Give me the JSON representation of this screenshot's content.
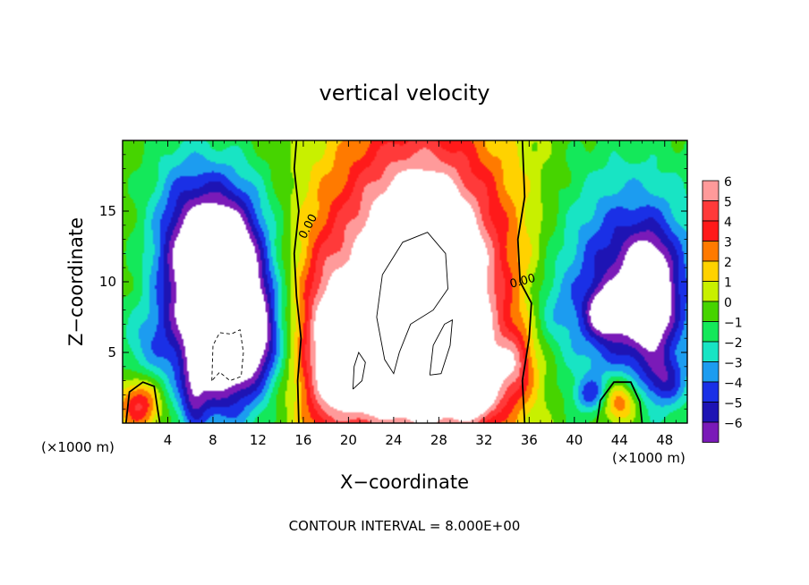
{
  "chart_data": {
    "type": "heatmap",
    "title": "vertical velocity",
    "xlabel": "X−coordinate",
    "ylabel": "Z−coordinate",
    "x_unit_left": "(×1000 m)",
    "x_unit_right": "(×1000 m)",
    "footer": "CONTOUR INTERVAL = 8.000E+00",
    "xlim": [
      0,
      50
    ],
    "ylim": [
      0,
      20
    ],
    "x_ticks": [
      4,
      8,
      12,
      16,
      20,
      24,
      28,
      32,
      36,
      40,
      44,
      48
    ],
    "y_ticks": [
      5,
      10,
      15
    ],
    "x_tick_labels": [
      "4",
      "8",
      "12",
      "16",
      "20",
      "24",
      "28",
      "32",
      "36",
      "40",
      "44",
      "48"
    ],
    "y_tick_labels": [
      "5",
      "10",
      "15"
    ],
    "contour_labels": [
      {
        "text": "0.00",
        "x": 16.7,
        "y": 13.8
      },
      {
        "text": "0.00",
        "x": 35.5,
        "y": 9.8
      }
    ],
    "colorbar": {
      "levels": [
        6,
        5,
        4,
        3,
        2,
        1,
        0,
        -1,
        -2,
        -3,
        -4,
        -5,
        -6
      ],
      "labels": [
        "6",
        "5",
        "4",
        "3",
        "2",
        "1",
        "0",
        "−1",
        "−2",
        "−3",
        "−4",
        "−5",
        "−6"
      ],
      "colors": [
        "#ff9a9a",
        "#ff3a3a",
        "#ff1a1a",
        "#ff7a00",
        "#ffd200",
        "#c8f000",
        "#46d400",
        "#14e85a",
        "#18e4c4",
        "#1c9cf0",
        "#1a30e6",
        "#1e14b4",
        "#7a1ab8"
      ]
    },
    "field_blobs": [
      {
        "x": 26.2,
        "z": 9.5,
        "sx": 5.6,
        "sz": 8.0,
        "amp": 11
      },
      {
        "x": 27.3,
        "z": 7.5,
        "sx": 2.6,
        "sz": 4.2,
        "amp": 6
      },
      {
        "x": 18.0,
        "z": 5.0,
        "sx": 1.6,
        "sz": 4.5,
        "amp": 5
      },
      {
        "x": 21.5,
        "z": 2.5,
        "sx": 1.8,
        "sz": 1.6,
        "amp": 4
      },
      {
        "x": 33.2,
        "z": 3.2,
        "sx": 2.0,
        "sz": 2.0,
        "amp": 3
      },
      {
        "x": 35.0,
        "z": 4.5,
        "sx": 1.0,
        "sz": 1.5,
        "amp": 2
      },
      {
        "x": 31.0,
        "z": 1.5,
        "sx": 1.2,
        "sz": 1.0,
        "amp": 3
      },
      {
        "x": 9.0,
        "z": 7.5,
        "sx": 2.4,
        "sz": 4.6,
        "amp": -11
      },
      {
        "x": 8.5,
        "z": 12.5,
        "sx": 3.2,
        "sz": 4.0,
        "amp": -5
      },
      {
        "x": 5.0,
        "z": 11.0,
        "sx": 2.0,
        "sz": 6.0,
        "amp": -3
      },
      {
        "x": 12.0,
        "z": 6.0,
        "sx": 1.6,
        "sz": 2.5,
        "amp": -4
      },
      {
        "x": 44.8,
        "z": 9.5,
        "sx": 4.5,
        "sz": 5.5,
        "amp": -6
      },
      {
        "x": 46.7,
        "z": 9.0,
        "sx": 1.4,
        "sz": 2.6,
        "amp": -6
      },
      {
        "x": 42.8,
        "z": 7.8,
        "sx": 1.1,
        "sz": 1.1,
        "amp": -5
      },
      {
        "x": 41.5,
        "z": 2.0,
        "sx": 1.0,
        "sz": 0.8,
        "amp": -3
      },
      {
        "x": 48.0,
        "z": 3.0,
        "sx": 1.2,
        "sz": 1.2,
        "amp": -3
      },
      {
        "x": 1.5,
        "z": 1.3,
        "sx": 1.3,
        "sz": 1.3,
        "amp": 5
      },
      {
        "x": 44.0,
        "z": 1.5,
        "sx": 1.2,
        "sz": 1.2,
        "amp": 5
      },
      {
        "x": 6.3,
        "z": 2.0,
        "sx": 0.8,
        "sz": 1.8,
        "amp": -3
      },
      {
        "x": 2.0,
        "z": 5.5,
        "sx": 1.8,
        "sz": 2.0,
        "amp": -2
      },
      {
        "x": 38.0,
        "z": 8.0,
        "sx": 1.5,
        "sz": 2.0,
        "amp": -1.5
      }
    ],
    "zero_contours": [
      [
        [
          15.6,
          0
        ],
        [
          15.5,
          3
        ],
        [
          15.8,
          6
        ],
        [
          15.4,
          9
        ],
        [
          15.2,
          12
        ],
        [
          15.6,
          15
        ],
        [
          15.2,
          18
        ],
        [
          15.4,
          20
        ]
      ],
      [
        [
          35.6,
          0
        ],
        [
          35.4,
          3
        ],
        [
          36.0,
          6
        ],
        [
          36.2,
          8.5
        ],
        [
          35.2,
          10
        ],
        [
          35.0,
          13
        ],
        [
          35.6,
          16
        ],
        [
          35.4,
          20
        ]
      ],
      [
        [
          0.3,
          0
        ],
        [
          0.6,
          2.2
        ],
        [
          1.8,
          2.9
        ],
        [
          2.8,
          2.6
        ],
        [
          3.1,
          1.0
        ],
        [
          3.3,
          0
        ]
      ],
      [
        [
          42.0,
          0
        ],
        [
          42.3,
          1.6
        ],
        [
          43.5,
          2.9
        ],
        [
          45.0,
          2.9
        ],
        [
          45.8,
          1.5
        ],
        [
          46.0,
          0
        ]
      ]
    ],
    "pos_contours": [
      [
        [
          22.5,
          7.5
        ],
        [
          23.0,
          10.5
        ],
        [
          24.8,
          12.8
        ],
        [
          27.0,
          13.5
        ],
        [
          28.6,
          12.0
        ],
        [
          28.8,
          9.5
        ],
        [
          27.5,
          8.0
        ],
        [
          25.5,
          7.0
        ],
        [
          24.5,
          5.0
        ],
        [
          24.0,
          3.5
        ],
        [
          23.2,
          4.5
        ],
        [
          22.5,
          7.5
        ]
      ],
      [
        [
          27.2,
          3.4
        ],
        [
          27.5,
          5.5
        ],
        [
          28.5,
          7.0
        ],
        [
          29.2,
          7.3
        ],
        [
          29.0,
          5.5
        ],
        [
          28.2,
          3.5
        ],
        [
          27.2,
          3.4
        ]
      ],
      [
        [
          20.4,
          2.4
        ],
        [
          20.5,
          4.0
        ],
        [
          20.9,
          5.0
        ],
        [
          21.5,
          4.3
        ],
        [
          21.2,
          3.0
        ],
        [
          20.4,
          2.4
        ]
      ]
    ],
    "neg_contours": [
      [
        [
          7.9,
          3.0
        ],
        [
          8.0,
          5.5
        ],
        [
          8.6,
          6.4
        ],
        [
          9.6,
          6.3
        ],
        [
          10.4,
          6.6
        ],
        [
          10.7,
          5.0
        ],
        [
          10.5,
          3.3
        ],
        [
          9.5,
          3.0
        ],
        [
          8.6,
          3.6
        ],
        [
          7.9,
          3.0
        ]
      ]
    ]
  }
}
